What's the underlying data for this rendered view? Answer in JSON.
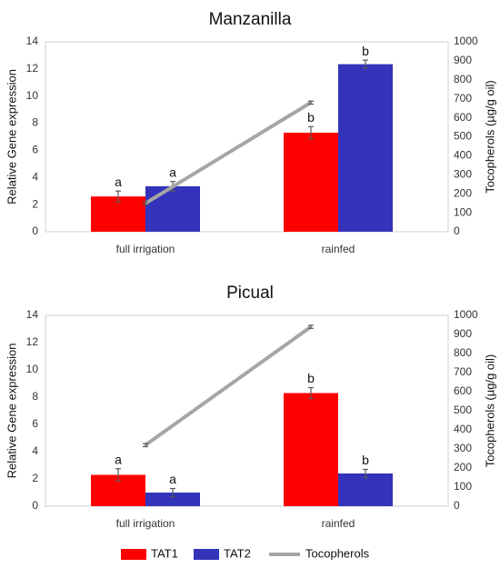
{
  "chart_data": [
    {
      "type": "bar",
      "title": "Manzanilla",
      "categories": [
        "full irrigation",
        "rainfed"
      ],
      "ylabel": "Relative Gene expression",
      "y2label": "Tocopherols (µg/g oil)",
      "ylim": [
        0,
        14
      ],
      "y2lim": [
        0,
        1000
      ],
      "yticks": [
        "0",
        "2",
        "4",
        "6",
        "8",
        "10",
        "12",
        "14"
      ],
      "y2ticks": [
        "0",
        "100",
        "200",
        "300",
        "400",
        "500",
        "600",
        "700",
        "800",
        "900",
        "1000"
      ],
      "series": [
        {
          "name": "TAT1",
          "values": [
            2.6,
            7.3
          ],
          "errors": [
            0.4,
            0.45
          ],
          "letters": [
            "a",
            "b"
          ]
        },
        {
          "name": "TAT2",
          "values": [
            3.35,
            12.35
          ],
          "errors": [
            0.35,
            0.3
          ],
          "letters": [
            "a",
            "b"
          ]
        }
      ],
      "line": {
        "name": "Tocopherols",
        "values": [
          150,
          680
        ],
        "errors": [
          8,
          8
        ]
      },
      "grid": false
    },
    {
      "type": "bar",
      "title": "Picual",
      "categories": [
        "full irrigation",
        "rainfed"
      ],
      "ylabel": "Relative Gene expression",
      "y2label": "Tocopherols (µg/g oil)",
      "ylim": [
        0,
        14
      ],
      "y2lim": [
        0,
        1000
      ],
      "yticks": [
        "0",
        "2",
        "4",
        "6",
        "8",
        "10",
        "12",
        "14"
      ],
      "y2ticks": [
        "0",
        "100",
        "200",
        "300",
        "400",
        "500",
        "600",
        "700",
        "800",
        "900",
        "1000"
      ],
      "series": [
        {
          "name": "TAT1",
          "values": [
            2.3,
            8.3
          ],
          "errors": [
            0.45,
            0.4
          ],
          "letters": [
            "a",
            "b"
          ]
        },
        {
          "name": "TAT2",
          "values": [
            1.0,
            2.4
          ],
          "errors": [
            0.3,
            0.3
          ],
          "letters": [
            "a",
            "b"
          ]
        }
      ],
      "line": {
        "name": "Tocopherols",
        "values": [
          320,
          940
        ],
        "errors": [
          8,
          8
        ]
      },
      "grid": false
    }
  ],
  "legend": {
    "position": "bottom",
    "items": [
      {
        "label": "TAT1",
        "kind": "bar",
        "color": "#FF0000"
      },
      {
        "label": "TAT2",
        "kind": "bar",
        "color": "#3333BB"
      },
      {
        "label": "Tocopherols",
        "kind": "line",
        "color": "#A6A6A6"
      }
    ]
  },
  "colors": {
    "tat1": "#FF0000",
    "tat2": "#3333BB",
    "tocopherols": "#A6A6A6",
    "error_bar": "#595959"
  }
}
